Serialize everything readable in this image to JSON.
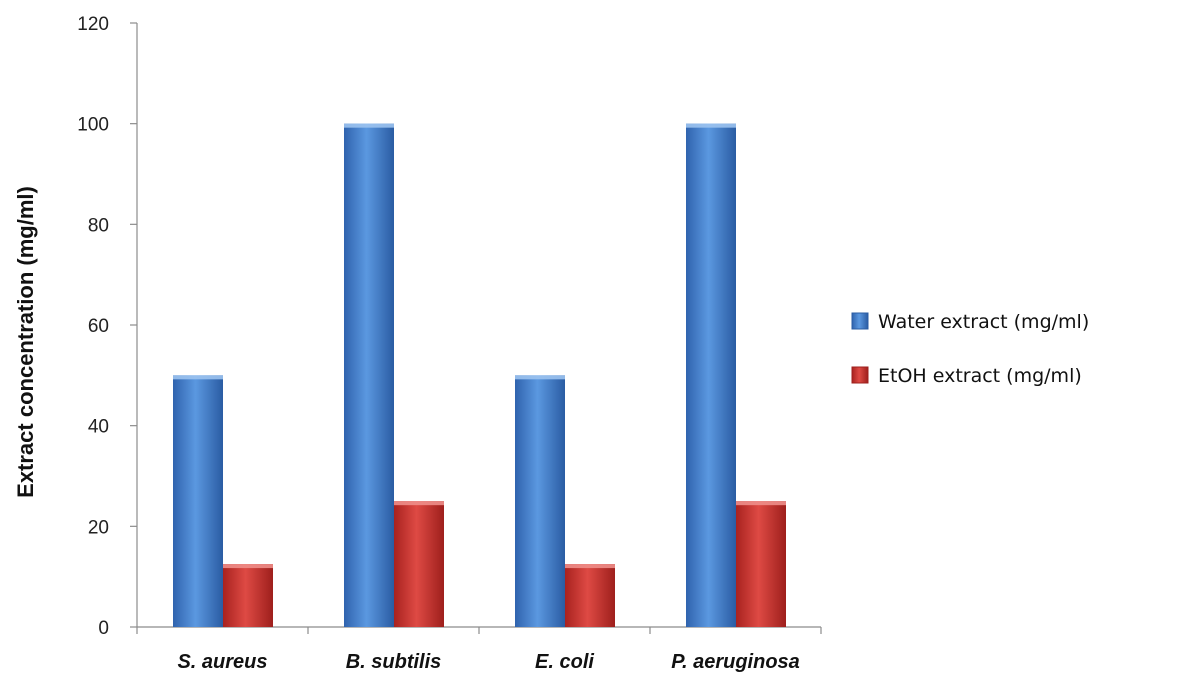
{
  "chart_data": {
    "type": "bar",
    "title": "",
    "xlabel": "",
    "ylabel": "Extract concentration (mg/ml)",
    "categories": [
      "S. aureus",
      "B. subtilis",
      "E. coli",
      "P. aeruginosa"
    ],
    "series": [
      {
        "name": "Water extract (mg/ml)",
        "values": [
          50,
          100,
          50,
          100
        ],
        "color": "#3A78C9"
      },
      {
        "name": "EtOH extract (mg/ml)",
        "values": [
          12.5,
          25,
          12.5,
          25
        ],
        "color": "#C8332E"
      }
    ],
    "ylim": [
      0,
      120
    ],
    "yticks": [
      "0",
      "20",
      "40",
      "60",
      "80",
      "100",
      "120"
    ],
    "grid": false,
    "legend_position": "right"
  }
}
